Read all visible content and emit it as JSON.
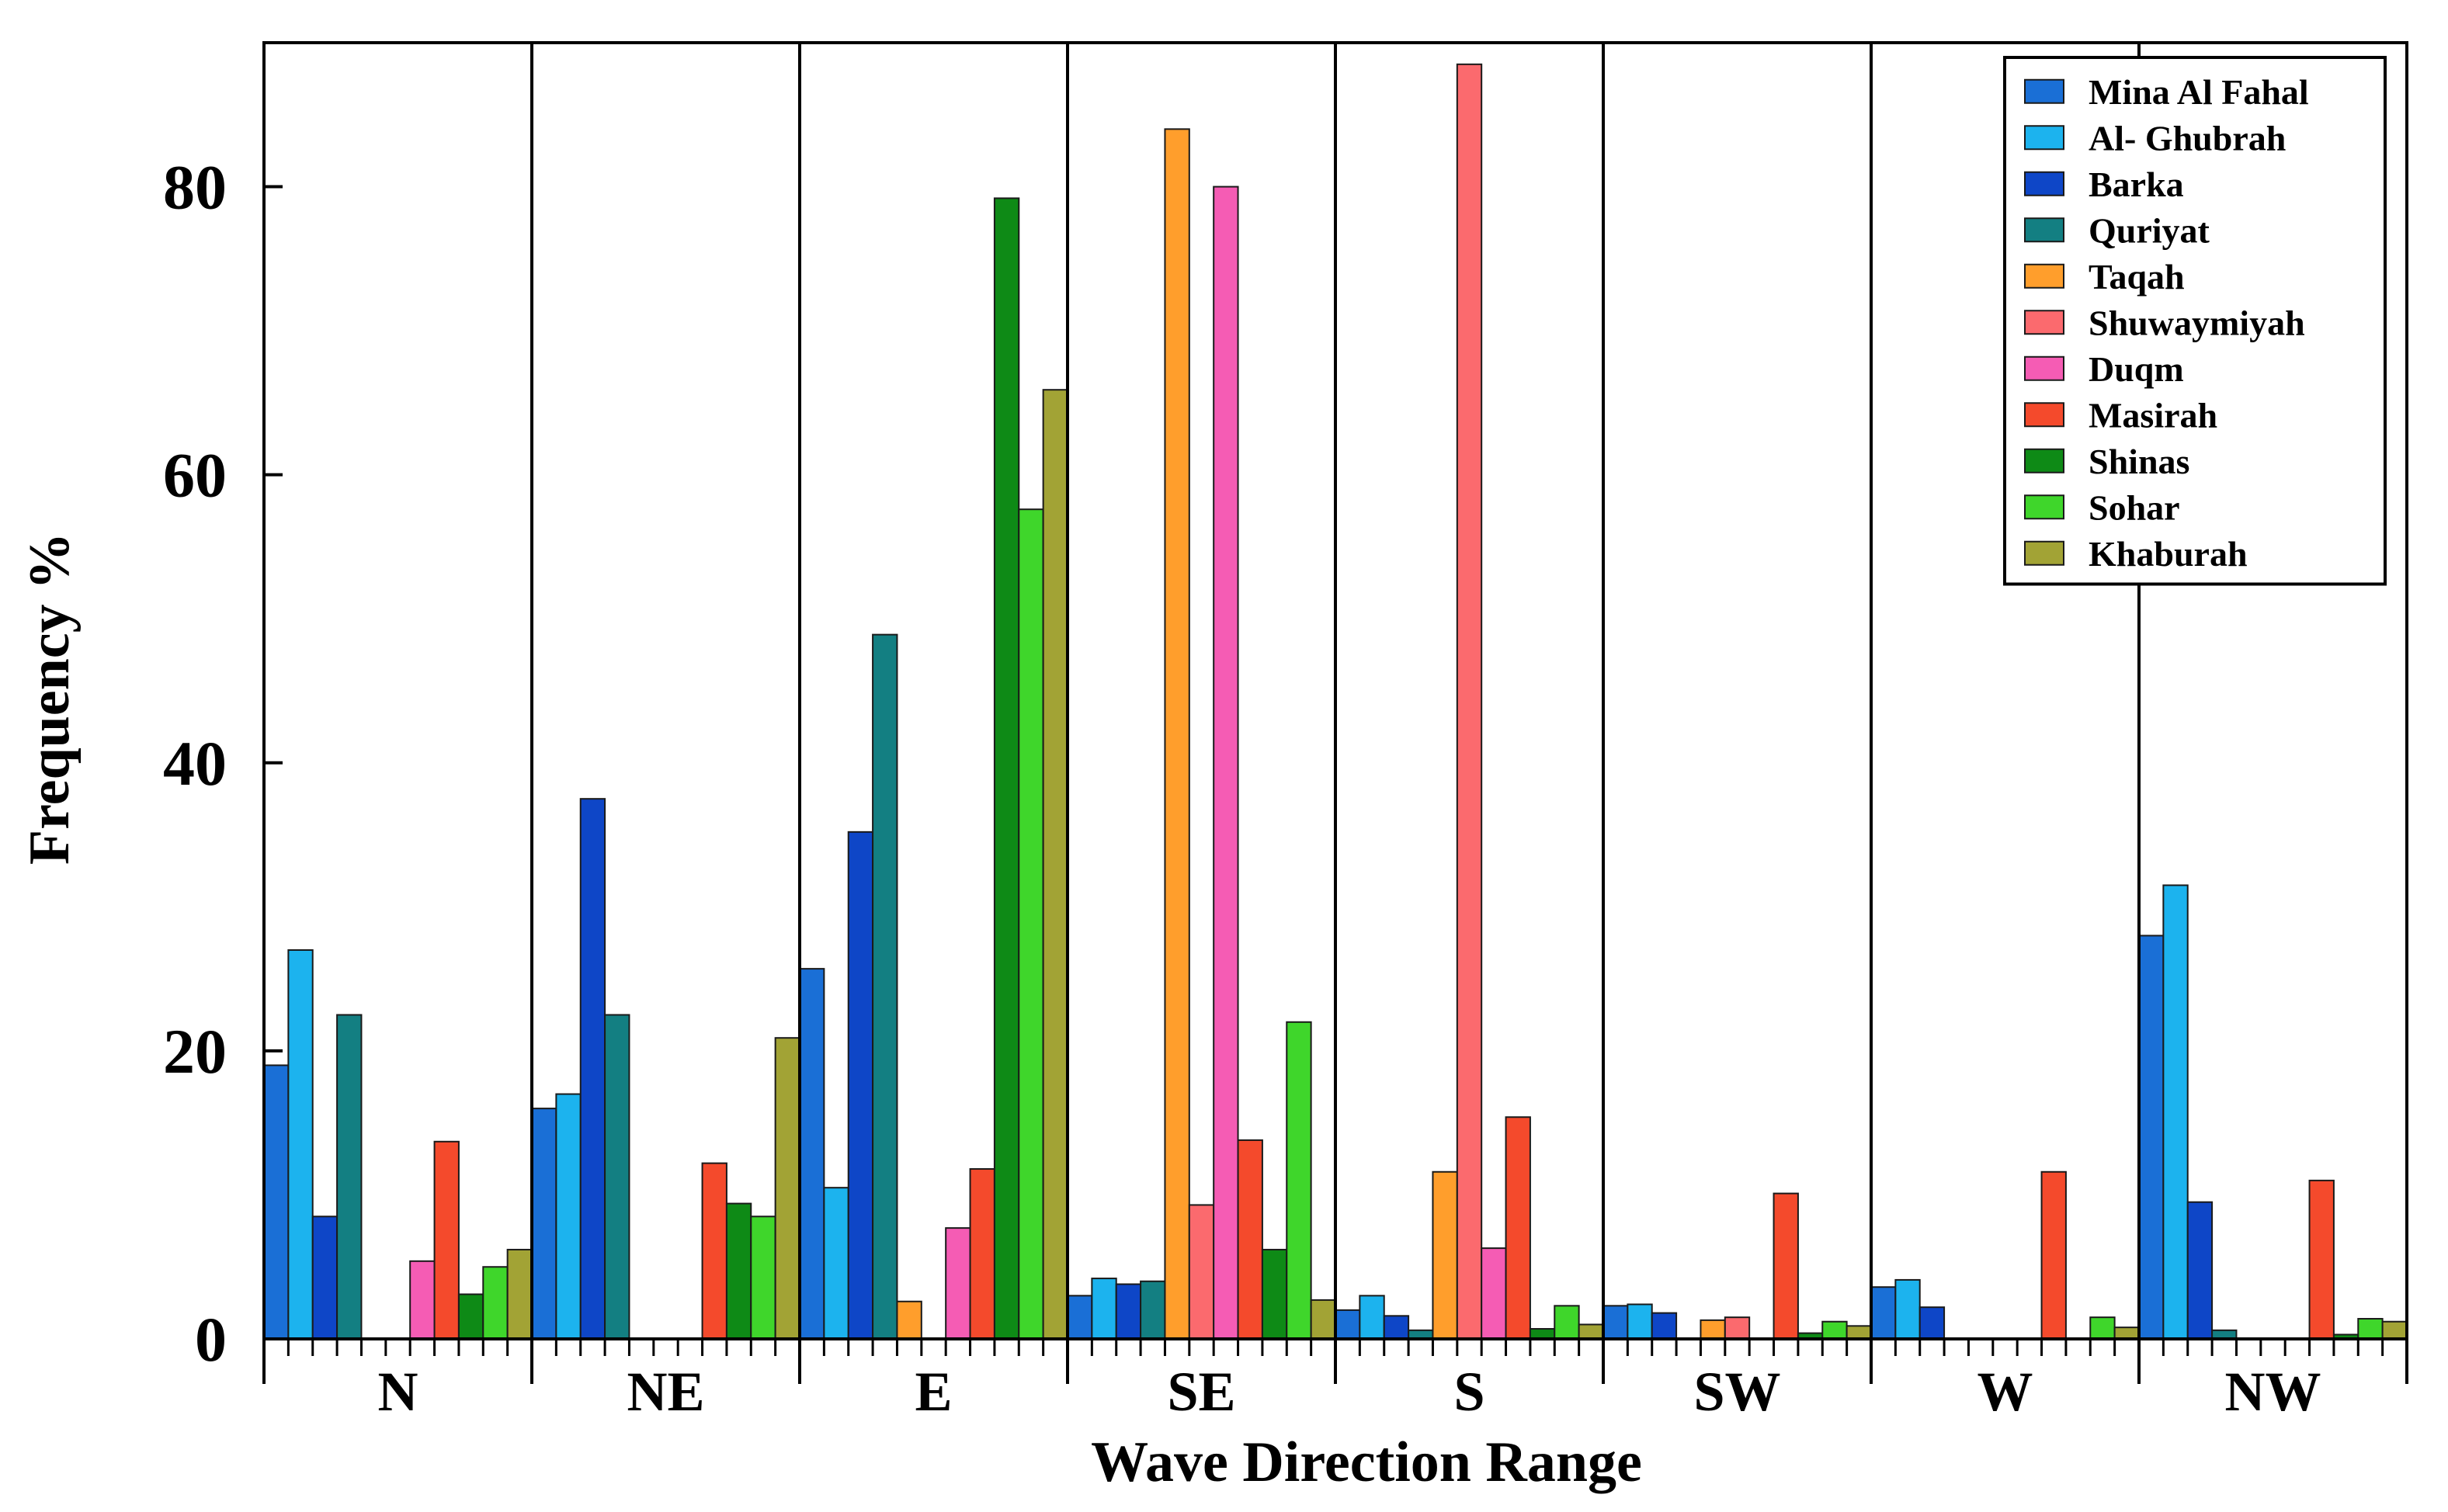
{
  "chart_data": {
    "type": "bar",
    "title": "",
    "xlabel": "Wave Direction Range",
    "ylabel": "Frequency %",
    "ylim": [
      0,
      90
    ],
    "yticks": [
      0,
      20,
      40,
      60,
      80
    ],
    "grid": false,
    "legend_position": "top-right",
    "categories": [
      "N",
      "NE",
      "E",
      "SE",
      "S",
      "SW",
      "W",
      "NW"
    ],
    "series": [
      {
        "name": "Mina Al Fahal",
        "color": "#1a6fd6",
        "values": [
          19,
          16,
          25.7,
          3,
          2,
          2.3,
          3.6,
          28
        ]
      },
      {
        "name": "Al- Ghubrah",
        "color": "#1cb3ee",
        "values": [
          27,
          17,
          10.5,
          4.2,
          3,
          2.4,
          4.1,
          31.5
        ]
      },
      {
        "name": "Barka",
        "color": "#0e46c7",
        "values": [
          8.5,
          37.5,
          35.2,
          3.8,
          1.6,
          1.8,
          2.2,
          9.5
        ]
      },
      {
        "name": "Quriyat",
        "color": "#137f82",
        "values": [
          22.5,
          22.5,
          48.9,
          4,
          0.6,
          0,
          0,
          0.6
        ]
      },
      {
        "name": "Taqah",
        "color": "#ff9e2c",
        "values": [
          0,
          0,
          2.6,
          84,
          11.6,
          1.3,
          0,
          0
        ]
      },
      {
        "name": "Shuwaymiyah",
        "color": "#fb6a6e",
        "values": [
          0,
          0,
          0,
          9.3,
          88.5,
          1.5,
          0,
          0
        ]
      },
      {
        "name": "Duqm",
        "color": "#f55cb4",
        "values": [
          5.4,
          0,
          7.7,
          80,
          6.3,
          0,
          0,
          0
        ]
      },
      {
        "name": "Masirah",
        "color": "#f44a2c",
        "values": [
          13.7,
          12.2,
          11.8,
          13.8,
          15.4,
          10.1,
          11.6,
          11
        ]
      },
      {
        "name": "Shinas",
        "color": "#0e8a16",
        "values": [
          3.1,
          9.4,
          79.2,
          6.2,
          0.7,
          0.4,
          0,
          0.3
        ]
      },
      {
        "name": "Sohar",
        "color": "#3fd62b",
        "values": [
          5,
          8.5,
          57.6,
          22,
          2.3,
          1.2,
          1.5,
          1.4
        ]
      },
      {
        "name": "Khaburah",
        "color": "#a2a335",
        "values": [
          6.2,
          20.9,
          65.9,
          2.7,
          1,
          0.9,
          0.8,
          1.2
        ]
      }
    ]
  }
}
